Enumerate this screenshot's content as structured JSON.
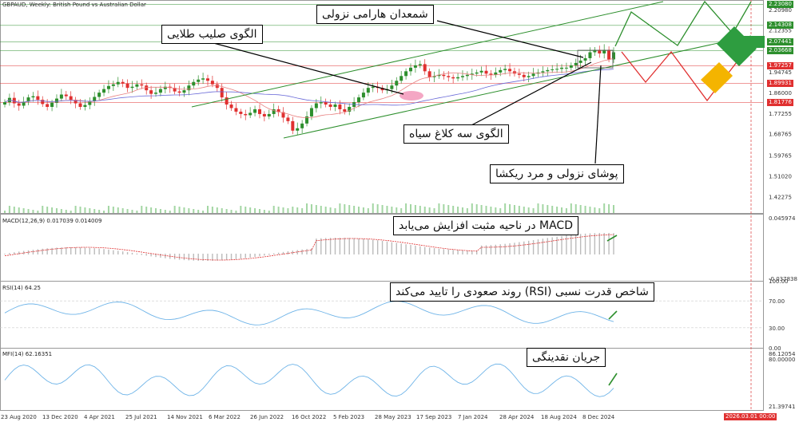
{
  "chart_data": [
    {
      "type": "candlestick",
      "title": "GBPAUD, Weekly:  British Pound vs Australian Dollar",
      "y_ticks": [
        "2.20980",
        "2.12355",
        "2.03668",
        "1.94745",
        "1.86000",
        "1.77255",
        "1.68765",
        "1.59765",
        "1.51020",
        "1.42275"
      ],
      "price_labels": [
        {
          "value": "2.23080",
          "color": "#2d8f2d"
        },
        {
          "value": "2.14308",
          "color": "#2d8f2d"
        },
        {
          "value": "2.07441",
          "color": "#2d8f2d"
        },
        {
          "value": "2.03668",
          "color": "#2d8f2d"
        },
        {
          "value": "1.97257",
          "color": "#e03030"
        },
        {
          "value": "1.89931",
          "color": "#e03030"
        },
        {
          "value": "1.81776",
          "color": "#e03030"
        }
      ],
      "x_labels": [
        "23 Aug 2020",
        "13 Dec 2020",
        "4 Apr 2021",
        "25 Jul 2021",
        "14 Nov 2021",
        "6 Mar 2022",
        "26 Jun 2022",
        "16 Oct 2022",
        "5 Feb 2023",
        "28 May 2023",
        "17 Sep 2023",
        "7 Jan 2024",
        "28 Apr 2024",
        "18 Aug 2024",
        "8 Dec 2024"
      ],
      "cursor_label": "2026.03.01 00:00",
      "closes": [
        1.82,
        1.838,
        1.815,
        1.805,
        1.822,
        1.84,
        1.845,
        1.83,
        1.812,
        1.8,
        1.818,
        1.835,
        1.852,
        1.845,
        1.83,
        1.815,
        1.8,
        1.808,
        1.825,
        1.842,
        1.86,
        1.875,
        1.888,
        1.895,
        1.905,
        1.898,
        1.88,
        1.885,
        1.895,
        1.89,
        1.87,
        1.855,
        1.86,
        1.875,
        1.885,
        1.88,
        1.865,
        1.86,
        1.87,
        1.89,
        1.905,
        1.915,
        1.92,
        1.91,
        1.895,
        1.88,
        1.84,
        1.81,
        1.795,
        1.78,
        1.77,
        1.765,
        1.775,
        1.79,
        1.77,
        1.76,
        1.77,
        1.79,
        1.778,
        1.755,
        1.74,
        1.7,
        1.71,
        1.73,
        1.76,
        1.795,
        1.815,
        1.82,
        1.81,
        1.8,
        1.81,
        1.79,
        1.78,
        1.8,
        1.82,
        1.84,
        1.86,
        1.88,
        1.885,
        1.88,
        1.87,
        1.875,
        1.89,
        1.91,
        1.93,
        1.95,
        1.965,
        1.975,
        1.98,
        1.95,
        1.925,
        1.93,
        1.935,
        1.93,
        1.925,
        1.92,
        1.925,
        1.93,
        1.935,
        1.94,
        1.945,
        1.952,
        1.94,
        1.935,
        1.945,
        1.955,
        1.96,
        1.95,
        1.94,
        1.935,
        1.925,
        1.93,
        1.94,
        1.945,
        1.95,
        1.955,
        1.958,
        1.96,
        1.965,
        1.965,
        1.975,
        1.985,
        1.995,
        2.005,
        2.03,
        2.04,
        2.025,
        2.04,
        2.0,
        2.03
      ],
      "indicators": [
        {
          "name": "MACD",
          "label": "MACD(12,26,9) 0.017039 0.014009",
          "ticks": [
            "0.045974",
            "-0.037838"
          ]
        },
        {
          "name": "RSI",
          "label": "RSI(14) 64.25",
          "ticks": [
            "100.00",
            "70.00",
            "30.00",
            "0.00"
          ]
        },
        {
          "name": "MFI",
          "label": "MFI(14) 62.16351",
          "ticks": [
            "86.12054",
            "80.00000",
            "21.39741"
          ]
        }
      ]
    }
  ],
  "annotations": {
    "hammer": "شمعدان هارامی نزولی",
    "cross": "الگوی صلیب طلایی",
    "crows": "الگوی سه کلاغ سیاه",
    "engulf": "پوشای نزولی و مرد ریکشا",
    "macd": "MACD در ناحیه مثبت افزایش می‌یابد",
    "rsi": "شاخص قدرت نسبی (RSI) روند صعودی را تایید می‌کند",
    "mfi": "جریان نقدینگی"
  },
  "colors": {
    "bull": "#2d8f2d",
    "bear": "#e03030",
    "ma1": "#e88080",
    "ma2": "#6a6ad8",
    "sub": "#6fb4e8"
  }
}
